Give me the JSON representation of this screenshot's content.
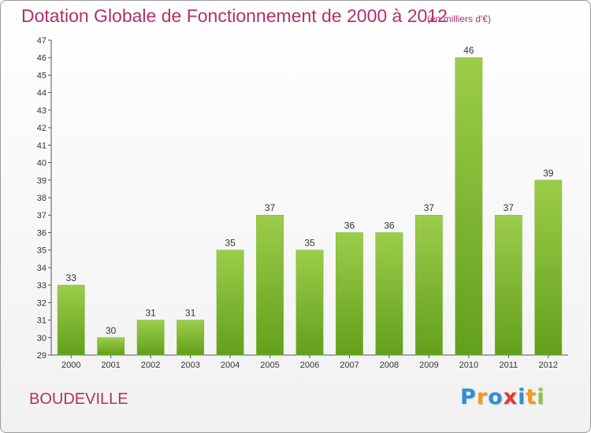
{
  "chart_data": {
    "type": "bar",
    "title": "Dotation Globale de Fonctionnement de 2000 à 2012",
    "subtitle": "(en milliers d'€)",
    "categories": [
      "2000",
      "2001",
      "2002",
      "2003",
      "2004",
      "2005",
      "2006",
      "2007",
      "2008",
      "2009",
      "2010",
      "2011",
      "2012"
    ],
    "values": [
      33,
      30,
      31,
      31,
      35,
      37,
      35,
      36,
      36,
      37,
      46,
      37,
      39
    ],
    "ylim": [
      29,
      47
    ],
    "yticks": [
      29,
      30,
      31,
      32,
      33,
      34,
      35,
      36,
      37,
      38,
      39,
      40,
      41,
      42,
      43,
      44,
      45,
      46,
      47
    ],
    "grid": false,
    "colors": {
      "bar_top": "#9ccd4a",
      "bar_bottom": "#62a01c",
      "title": "#b0306a"
    }
  },
  "commune": "BOUDEVILLE",
  "logo": {
    "letters": [
      "P",
      "r",
      "o",
      "x",
      "i",
      "t",
      "i"
    ],
    "colors": [
      "#2f8fd5",
      "#f39a1f",
      "#2f8fd5",
      "#e23a2e",
      "#2f8fd5",
      "#f39a1f",
      "#8ac53e"
    ]
  }
}
